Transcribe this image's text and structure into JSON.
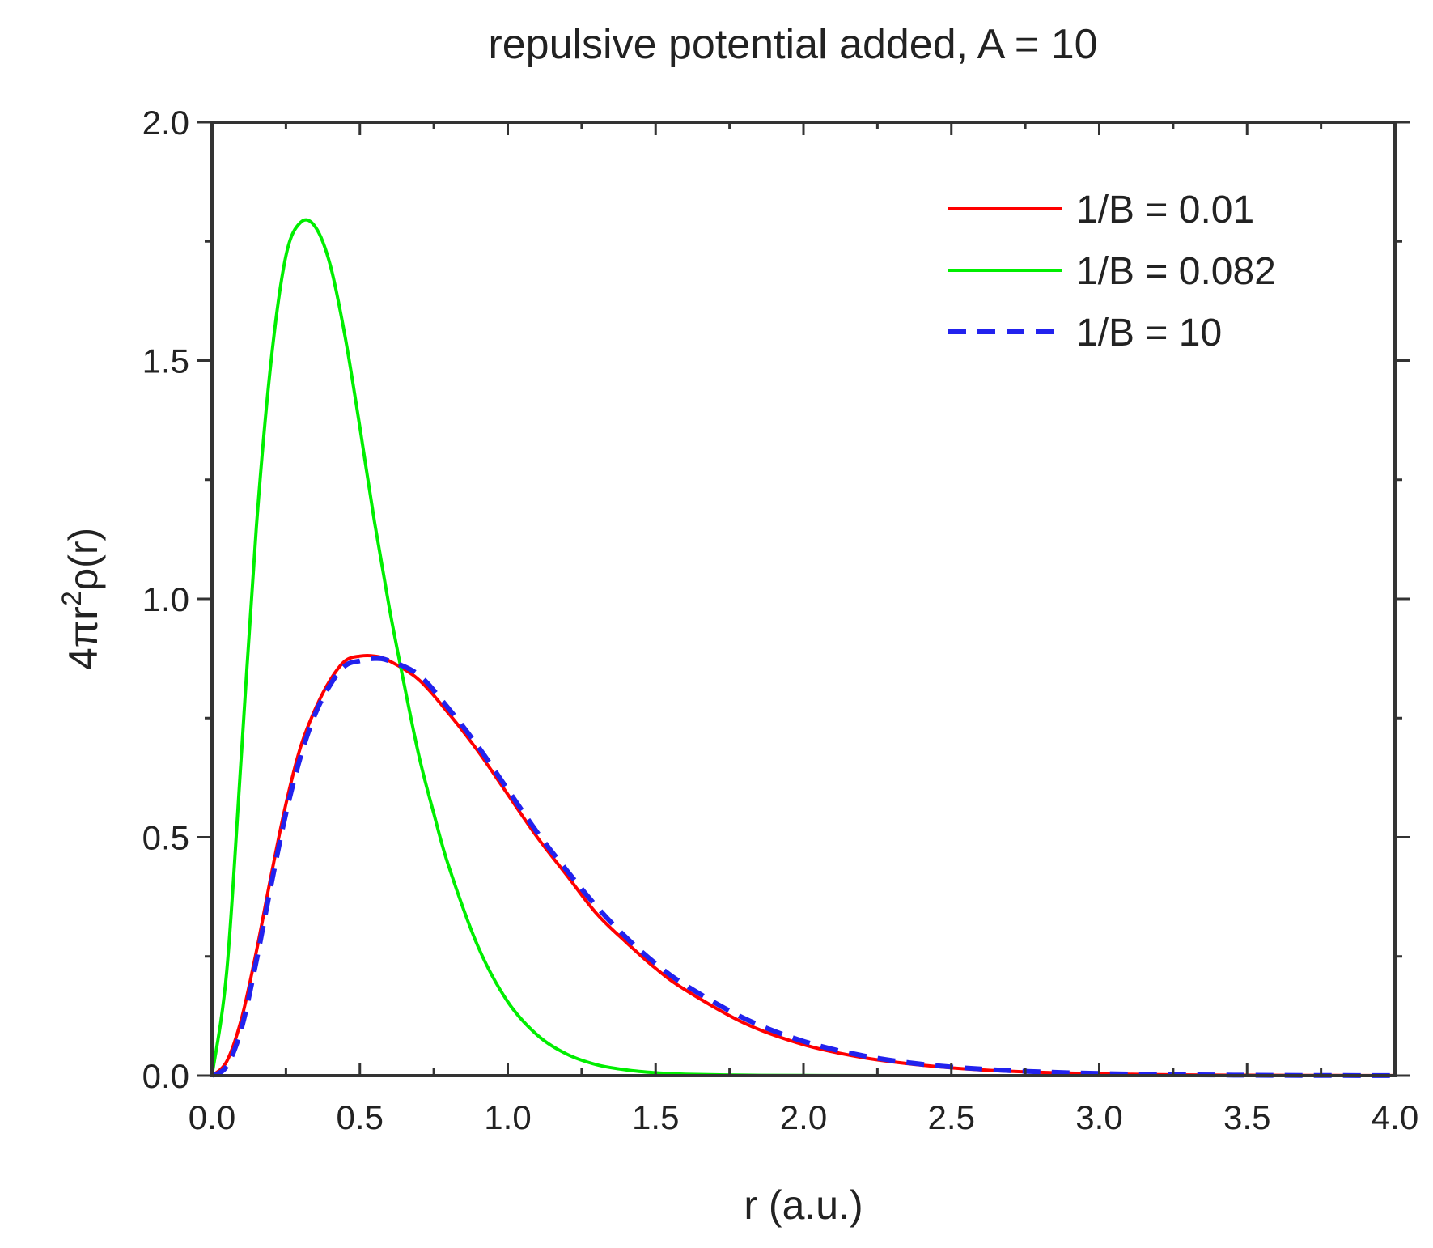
{
  "chart_data": {
    "type": "line",
    "title": "repulsive potential added, A = 10",
    "xlabel": "r (a.u.)",
    "ylabel": "4πr²ρ(r)",
    "xlim": [
      0,
      4
    ],
    "ylim": [
      0,
      2
    ],
    "x_ticks": [
      "0.0",
      "0.5",
      "1.0",
      "1.5",
      "2.0",
      "2.5",
      "3.0",
      "3.5",
      "4.0"
    ],
    "y_ticks": [
      "0.0",
      "0.5",
      "1.0",
      "1.5",
      "2.0"
    ],
    "grid": false,
    "legend_position": "top-right",
    "series": [
      {
        "name": "1/B = 0.01",
        "color": "#ff0000",
        "style": "solid",
        "x": [
          0,
          0.05,
          0.1,
          0.15,
          0.2,
          0.25,
          0.3,
          0.35,
          0.4,
          0.45,
          0.5,
          0.55,
          0.6,
          0.7,
          0.8,
          0.9,
          1.0,
          1.1,
          1.2,
          1.3,
          1.4,
          1.5,
          1.6,
          1.8,
          2.0,
          2.2,
          2.4,
          2.6,
          2.8,
          3.0,
          3.2,
          3.4,
          3.6,
          3.8,
          4.0
        ],
        "y": [
          0,
          0.03,
          0.12,
          0.26,
          0.42,
          0.57,
          0.69,
          0.77,
          0.83,
          0.87,
          0.88,
          0.88,
          0.87,
          0.83,
          0.76,
          0.68,
          0.59,
          0.5,
          0.42,
          0.34,
          0.28,
          0.225,
          0.18,
          0.11,
          0.065,
          0.038,
          0.022,
          0.012,
          0.007,
          0.004,
          0.002,
          0.001,
          0.0006,
          0.0003,
          0.0002
        ]
      },
      {
        "name": "1/B = 0.082",
        "color": "#00ee00",
        "style": "solid",
        "x": [
          0,
          0.05,
          0.1,
          0.15,
          0.2,
          0.25,
          0.3,
          0.35,
          0.4,
          0.45,
          0.5,
          0.55,
          0.6,
          0.65,
          0.7,
          0.75,
          0.8,
          0.9,
          1.0,
          1.1,
          1.2,
          1.3,
          1.4,
          1.5,
          1.6,
          1.8,
          2.0,
          2.5,
          3.0,
          3.5,
          4.0
        ],
        "y": [
          0,
          0.22,
          0.68,
          1.15,
          1.5,
          1.72,
          1.79,
          1.78,
          1.7,
          1.55,
          1.36,
          1.16,
          0.98,
          0.82,
          0.67,
          0.55,
          0.44,
          0.27,
          0.155,
          0.085,
          0.045,
          0.023,
          0.012,
          0.006,
          0.003,
          0.001,
          0.0003,
          0,
          0,
          0,
          0
        ]
      },
      {
        "name": "1/B = 10",
        "color": "#2222ee",
        "style": "dashed",
        "x": [
          0,
          0.05,
          0.1,
          0.15,
          0.2,
          0.25,
          0.3,
          0.35,
          0.4,
          0.45,
          0.5,
          0.55,
          0.6,
          0.7,
          0.8,
          0.9,
          1.0,
          1.1,
          1.2,
          1.3,
          1.4,
          1.5,
          1.6,
          1.8,
          2.0,
          2.2,
          2.4,
          2.6,
          2.8,
          3.0,
          3.2,
          3.4,
          3.6,
          3.8,
          4.0
        ],
        "y": [
          0,
          0.02,
          0.1,
          0.24,
          0.4,
          0.55,
          0.67,
          0.76,
          0.82,
          0.86,
          0.87,
          0.875,
          0.87,
          0.84,
          0.77,
          0.69,
          0.6,
          0.51,
          0.43,
          0.355,
          0.29,
          0.235,
          0.19,
          0.12,
          0.072,
          0.042,
          0.024,
          0.014,
          0.008,
          0.0045,
          0.0025,
          0.0013,
          0.0007,
          0.0004,
          0.0002
        ]
      }
    ]
  }
}
